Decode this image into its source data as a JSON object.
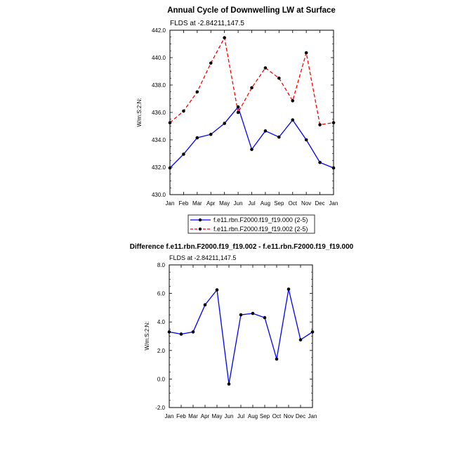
{
  "chart_data": [
    {
      "type": "line",
      "title": "Annual Cycle of Downwelling LW at Surface",
      "subtitle": "FLDS at -2.84211,147.5",
      "ylabel": "W/m:S:2:N:",
      "xlabel": "",
      "categories": [
        "Jan",
        "Feb",
        "Mar",
        "Apr",
        "May",
        "Jun",
        "Jul",
        "Aug",
        "Sep",
        "Oct",
        "Nov",
        "Dec",
        "Jan"
      ],
      "ylim": [
        430.0,
        442.0
      ],
      "yticks": [
        "430.0",
        "432.0",
        "434.0",
        "436.0",
        "438.0",
        "440.0",
        "442.0"
      ],
      "legend_position": "bottom",
      "series": [
        {
          "name": "f.e11.rbn.F2000.f19_f19.000 (2-5)",
          "color": "#0000ff",
          "dash": "solid",
          "values": [
            431.95,
            432.95,
            434.15,
            434.4,
            435.2,
            436.4,
            433.3,
            434.65,
            434.2,
            435.45,
            434.0,
            432.35,
            431.95
          ]
        },
        {
          "name": "f.e11.rbn.F2000.f19_f19.002 (2-5)",
          "color": "#ff0000",
          "dash": "dashed",
          "values": [
            435.25,
            436.1,
            437.5,
            439.6,
            441.45,
            436.0,
            437.8,
            439.25,
            438.5,
            436.85,
            440.35,
            435.1,
            435.25
          ]
        }
      ]
    },
    {
      "type": "line",
      "title": "Difference f.e11.rbn.F2000.f19_f19.002 - f.e11.rbn.F2000.f19_f19.000",
      "subtitle": "FLDS at -2.84211,147.5",
      "ylabel": "W/m:S:2:N:",
      "xlabel": "",
      "categories": [
        "Jan",
        "Feb",
        "Mar",
        "Apr",
        "May",
        "Jun",
        "Jul",
        "Aug",
        "Sep",
        "Oct",
        "Nov",
        "Dec",
        "Jan"
      ],
      "ylim": [
        -2.0,
        8.0
      ],
      "yticks": [
        "-2.0",
        "0.0",
        "2.0",
        "4.0",
        "6.0",
        "8.0"
      ],
      "series": [
        {
          "name": "",
          "color": "#0000ff",
          "dash": "solid",
          "values": [
            3.3,
            3.15,
            3.3,
            5.2,
            6.25,
            -0.35,
            4.5,
            4.6,
            4.3,
            1.4,
            6.3,
            2.75,
            3.3
          ]
        }
      ]
    }
  ]
}
